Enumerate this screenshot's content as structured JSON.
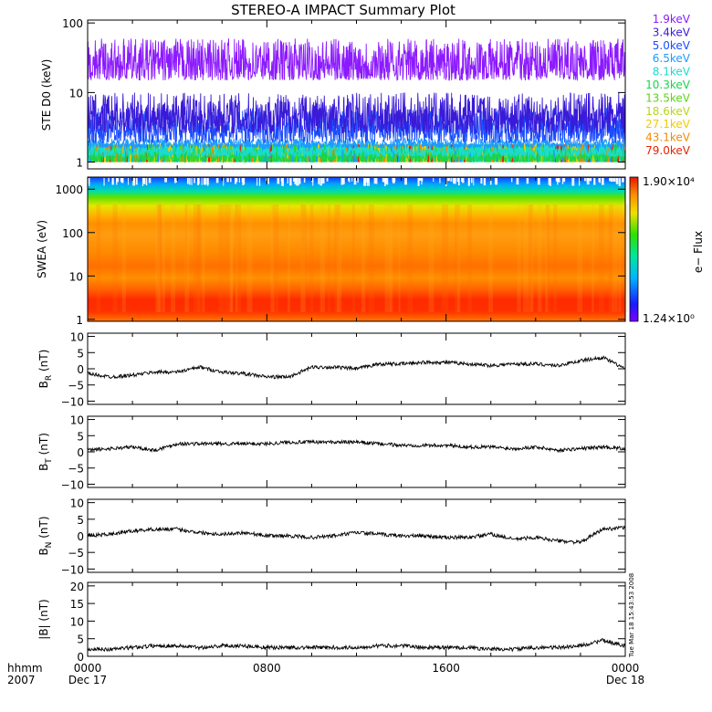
{
  "title": "STEREO-A IMPACT Summary Plot",
  "timestamp": "Tue Mar 18 15:43:53 2008",
  "bottom_labels": {
    "fmt": "hhmm",
    "year": "2007"
  },
  "energy_channels": [
    {
      "label": "1.9keV",
      "color": "#8c1aff"
    },
    {
      "label": "3.4keV",
      "color": "#3a1ad8"
    },
    {
      "label": "5.0keV",
      "color": "#1a4dff"
    },
    {
      "label": "6.5keV",
      "color": "#1a9cff"
    },
    {
      "label": "8.1keV",
      "color": "#1adcd0"
    },
    {
      "label": "10.3keV",
      "color": "#1ad44a"
    },
    {
      "label": "13.5keV",
      "color": "#5cd41a"
    },
    {
      "label": "18.6keV",
      "color": "#b8d41a"
    },
    {
      "label": "27.1keV",
      "color": "#f2ca00"
    },
    {
      "label": "43.1keV",
      "color": "#f28a00"
    },
    {
      "label": "79.0keV",
      "color": "#e82200"
    }
  ],
  "colorbar": {
    "max_label": "1.90×10⁴",
    "min_label": "1.24×10⁰",
    "axis_label": "e− Flux"
  },
  "chart_data": [
    {
      "type": "line",
      "panel": "ste",
      "ylabel": "STE D0 (keV)",
      "yscale": "log",
      "ylim": [
        0.8,
        110
      ],
      "yticks": [
        {
          "v": 1,
          "label": "1"
        },
        {
          "v": 10,
          "label": "10"
        },
        {
          "v": 100,
          "label": "100"
        }
      ],
      "xlim": [
        0,
        24
      ],
      "series": [
        {
          "name": "1.9keV",
          "typical": 35,
          "min": 15,
          "max": 60
        },
        {
          "name": "3.4keV",
          "typical": 4,
          "min": 2.6,
          "max": 10
        },
        {
          "name": "5.0keV",
          "typical": 2.6,
          "min": 1.9,
          "max": 6
        },
        {
          "name": "6.5keV",
          "typical": 1.8,
          "min": 1.6,
          "max": 2.2
        },
        {
          "name": "8.1keV",
          "typical": 1.5,
          "min": 1.2,
          "max": 1.8
        },
        {
          "name": "10.3keV",
          "typical": 1.3,
          "min": 1.0,
          "max": 1.6
        }
      ]
    },
    {
      "type": "heatmap",
      "panel": "swea",
      "ylabel": "SWEA (eV)",
      "yscale": "log",
      "ylim": [
        0.9,
        1900
      ],
      "yticks": [
        {
          "v": 1,
          "label": "1"
        },
        {
          "v": 10,
          "label": "10"
        },
        {
          "v": 100,
          "label": "100"
        },
        {
          "v": 1000,
          "label": "1000"
        }
      ],
      "xlim": [
        0,
        24
      ],
      "zlim": [
        1.24,
        19000
      ]
    },
    {
      "type": "line",
      "panel": "br",
      "ylabel": "B_R (nT)",
      "ylim": [
        -11,
        11
      ],
      "yticks": [
        {
          "v": -10,
          "label": "−10"
        },
        {
          "v": -5,
          "label": "−5"
        },
        {
          "v": 0,
          "label": "0"
        },
        {
          "v": 5,
          "label": "5"
        },
        {
          "v": 10,
          "label": "10"
        }
      ],
      "xlim": [
        0,
        24
      ],
      "x": [
        0,
        1,
        2,
        3,
        4,
        5,
        6,
        7,
        8,
        9,
        10,
        11,
        12,
        13,
        14,
        15,
        16,
        17,
        18,
        19,
        20,
        21,
        22,
        23,
        24
      ],
      "y": [
        -1.5,
        -2.5,
        -2,
        -1,
        -1,
        0.5,
        -1,
        -1.5,
        -2.5,
        -2.5,
        0.5,
        0.5,
        0,
        1.5,
        1.5,
        2,
        2,
        1.5,
        1,
        1.5,
        1.5,
        1,
        2.5,
        3.5,
        0
      ]
    },
    {
      "type": "line",
      "panel": "bt",
      "ylabel": "B_T (nT)",
      "ylim": [
        -11,
        11
      ],
      "yticks": [
        {
          "v": -10,
          "label": "−10"
        },
        {
          "v": -5,
          "label": "−5"
        },
        {
          "v": 0,
          "label": "0"
        },
        {
          "v": 5,
          "label": "5"
        },
        {
          "v": 10,
          "label": "10"
        }
      ],
      "xlim": [
        0,
        24
      ],
      "x": [
        0,
        1,
        2,
        3,
        4,
        5,
        6,
        7,
        8,
        9,
        10,
        11,
        12,
        13,
        14,
        15,
        16,
        17,
        18,
        19,
        20,
        21,
        22,
        23,
        24
      ],
      "y": [
        0.5,
        1,
        1.5,
        0.5,
        2.5,
        2.5,
        2.5,
        2.5,
        2.5,
        3,
        3,
        3,
        3,
        2.5,
        2,
        2,
        2,
        1.5,
        1.5,
        1,
        1.5,
        0.5,
        1,
        1.5,
        1
      ]
    },
    {
      "type": "line",
      "panel": "bn",
      "ylabel": "B_N (nT)",
      "ylim": [
        -11,
        11
      ],
      "yticks": [
        {
          "v": -10,
          "label": "−10"
        },
        {
          "v": -5,
          "label": "−5"
        },
        {
          "v": 0,
          "label": "0"
        },
        {
          "v": 5,
          "label": "5"
        },
        {
          "v": 10,
          "label": "10"
        }
      ],
      "xlim": [
        0,
        24
      ],
      "x": [
        0,
        1,
        2,
        3,
        4,
        5,
        6,
        7,
        8,
        9,
        10,
        11,
        12,
        13,
        14,
        15,
        16,
        17,
        18,
        19,
        20,
        21,
        22,
        23,
        24
      ],
      "y": [
        0,
        0.5,
        1.5,
        2,
        2,
        1,
        0.5,
        1,
        0,
        0,
        -0.5,
        0,
        1,
        0.5,
        0,
        0,
        -0.5,
        -0.5,
        0.5,
        -1,
        -0.5,
        -1.5,
        -2,
        2,
        2.5
      ]
    },
    {
      "type": "line",
      "panel": "bmag",
      "ylabel": "|B| (nT)",
      "ylim": [
        0,
        21
      ],
      "yticks": [
        {
          "v": 0,
          "label": "0"
        },
        {
          "v": 5,
          "label": "5"
        },
        {
          "v": 10,
          "label": "10"
        },
        {
          "v": 15,
          "label": "15"
        },
        {
          "v": 20,
          "label": "20"
        }
      ],
      "xlim": [
        0,
        24
      ],
      "x": [
        0,
        1,
        2,
        3,
        4,
        5,
        6,
        7,
        8,
        9,
        10,
        11,
        12,
        13,
        14,
        15,
        16,
        17,
        18,
        19,
        20,
        21,
        22,
        23,
        24
      ],
      "y": [
        2,
        2,
        2.5,
        3,
        3,
        2.5,
        3,
        3,
        2.5,
        2.5,
        2.5,
        2.5,
        2.5,
        3,
        3,
        2.5,
        2.5,
        2.5,
        2,
        2,
        2.5,
        2.5,
        3,
        4.5,
        3
      ]
    }
  ],
  "x_axis": {
    "ticks": [
      {
        "v": 0,
        "label": "0000",
        "date": "Dec 17"
      },
      {
        "v": 8,
        "label": "0800",
        "date": ""
      },
      {
        "v": 16,
        "label": "1600",
        "date": ""
      },
      {
        "v": 24,
        "label": "0000",
        "date": "Dec 18"
      }
    ]
  }
}
